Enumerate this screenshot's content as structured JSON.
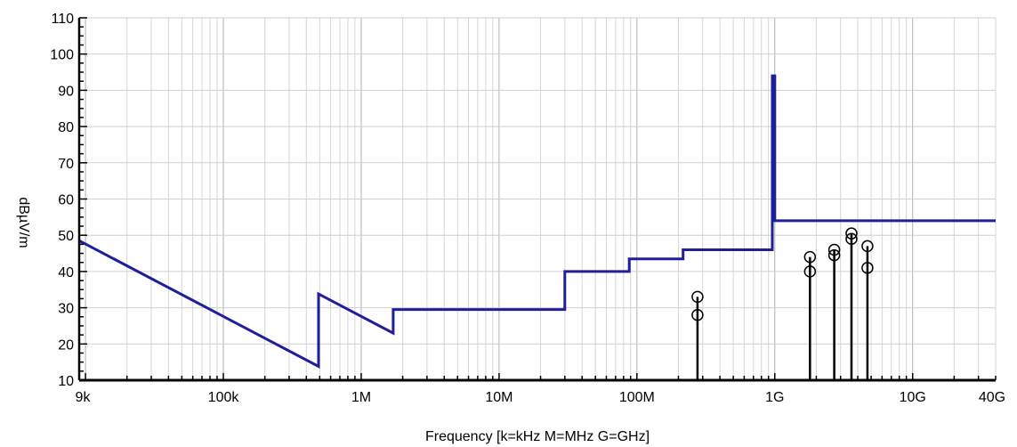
{
  "chart_data": {
    "type": "line",
    "xscale": "log",
    "xlabel": "Frequency [k=kHz M=MHz G=GHz]",
    "ylabel": "dBµV/m",
    "xlim": [
      9000,
      40000000000
    ],
    "ylim": [
      10,
      110
    ],
    "grid": true,
    "yticks": [
      10,
      20,
      30,
      40,
      50,
      60,
      70,
      80,
      90,
      100,
      110
    ],
    "xticks": [
      {
        "value": 9000,
        "label": "9k"
      },
      {
        "value": 100000,
        "label": "100k"
      },
      {
        "value": 1000000,
        "label": "1M"
      },
      {
        "value": 10000000,
        "label": "10M"
      },
      {
        "value": 100000000,
        "label": "100M"
      },
      {
        "value": 1000000000,
        "label": "1G"
      },
      {
        "value": 10000000000,
        "label": "10G"
      },
      {
        "value": 40000000000,
        "label": "40G"
      }
    ],
    "limit_line": {
      "color": "#1f1f99",
      "points": [
        [
          9000,
          48.5
        ],
        [
          490000,
          13.8
        ],
        [
          490000,
          33.8
        ],
        [
          1705000,
          23
        ],
        [
          1705000,
          29.5
        ],
        [
          30000000,
          29.5
        ],
        [
          30000000,
          40
        ],
        [
          88000000,
          40
        ],
        [
          88000000,
          43.5
        ],
        [
          216000000,
          43.5
        ],
        [
          216000000,
          46
        ],
        [
          960000000,
          46
        ],
        [
          960000000,
          94
        ],
        [
          1000000000,
          94
        ],
        [
          1000000000,
          54
        ],
        [
          40000000000,
          54
        ]
      ]
    },
    "measurements": [
      {
        "freq": 275000000,
        "peak": 33,
        "avg": 28
      },
      {
        "freq": 1800000000,
        "peak": 44,
        "avg": 40
      },
      {
        "freq": 2700000000,
        "peak": 46,
        "avg": 44.5
      },
      {
        "freq": 3600000000,
        "peak": 50.5,
        "avg": 49
      },
      {
        "freq": 4700000000,
        "peak": 47,
        "avg": 41
      }
    ]
  }
}
